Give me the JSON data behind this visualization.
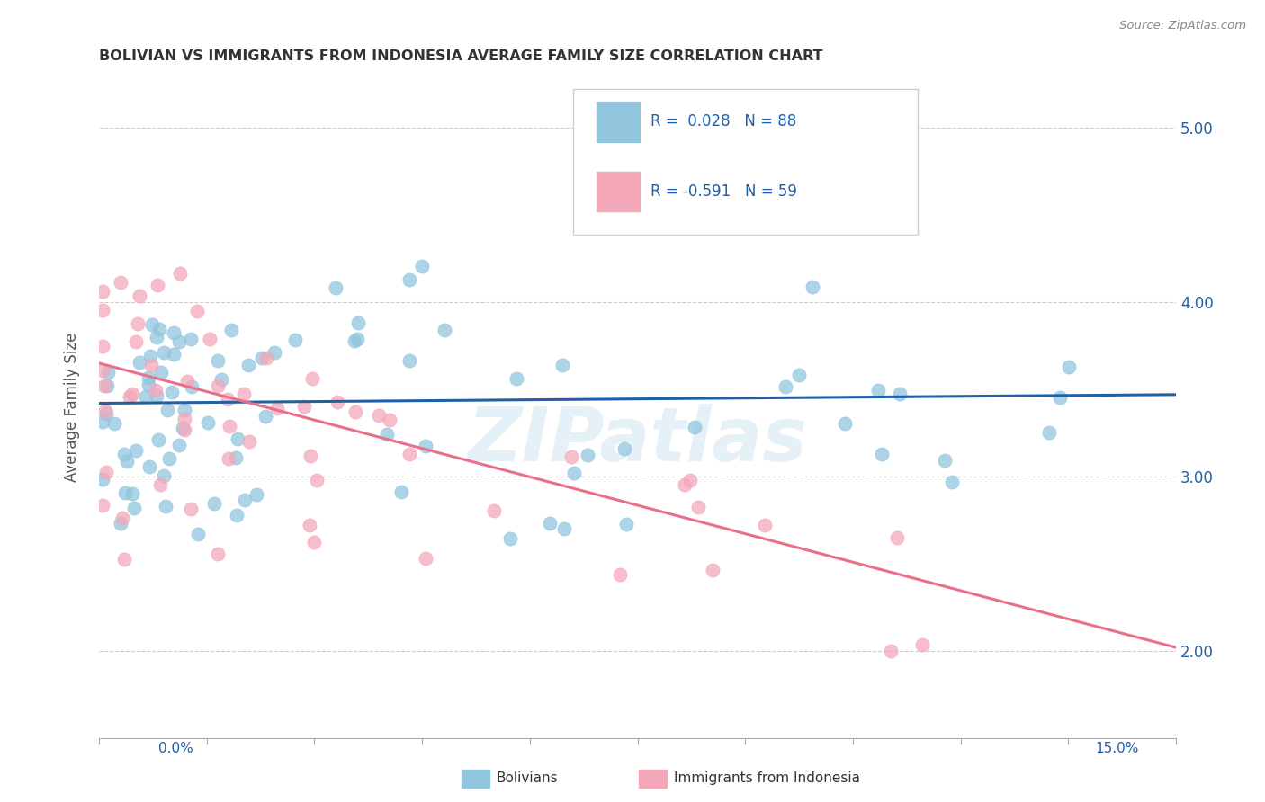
{
  "title": "BOLIVIAN VS IMMIGRANTS FROM INDONESIA AVERAGE FAMILY SIZE CORRELATION CHART",
  "source": "Source: ZipAtlas.com",
  "ylabel": "Average Family Size",
  "xmin": 0.0,
  "xmax": 15.0,
  "ymin": 1.5,
  "ymax": 5.3,
  "yticks": [
    2.0,
    3.0,
    4.0,
    5.0
  ],
  "blue_R": 0.028,
  "blue_N": 88,
  "pink_R": -0.591,
  "pink_N": 59,
  "blue_color": "#92C5DE",
  "pink_color": "#F4A7B9",
  "blue_line_color": "#2060A8",
  "pink_line_color": "#E8708A",
  "legend_label_blue": "Bolivians",
  "legend_label_pink": "Immigrants from Indonesia",
  "watermark": "ZIPatlas",
  "background_color": "#ffffff",
  "blue_trend_y0": 3.42,
  "blue_trend_y1": 3.47,
  "pink_trend_y0": 3.65,
  "pink_trend_y1": 2.02
}
